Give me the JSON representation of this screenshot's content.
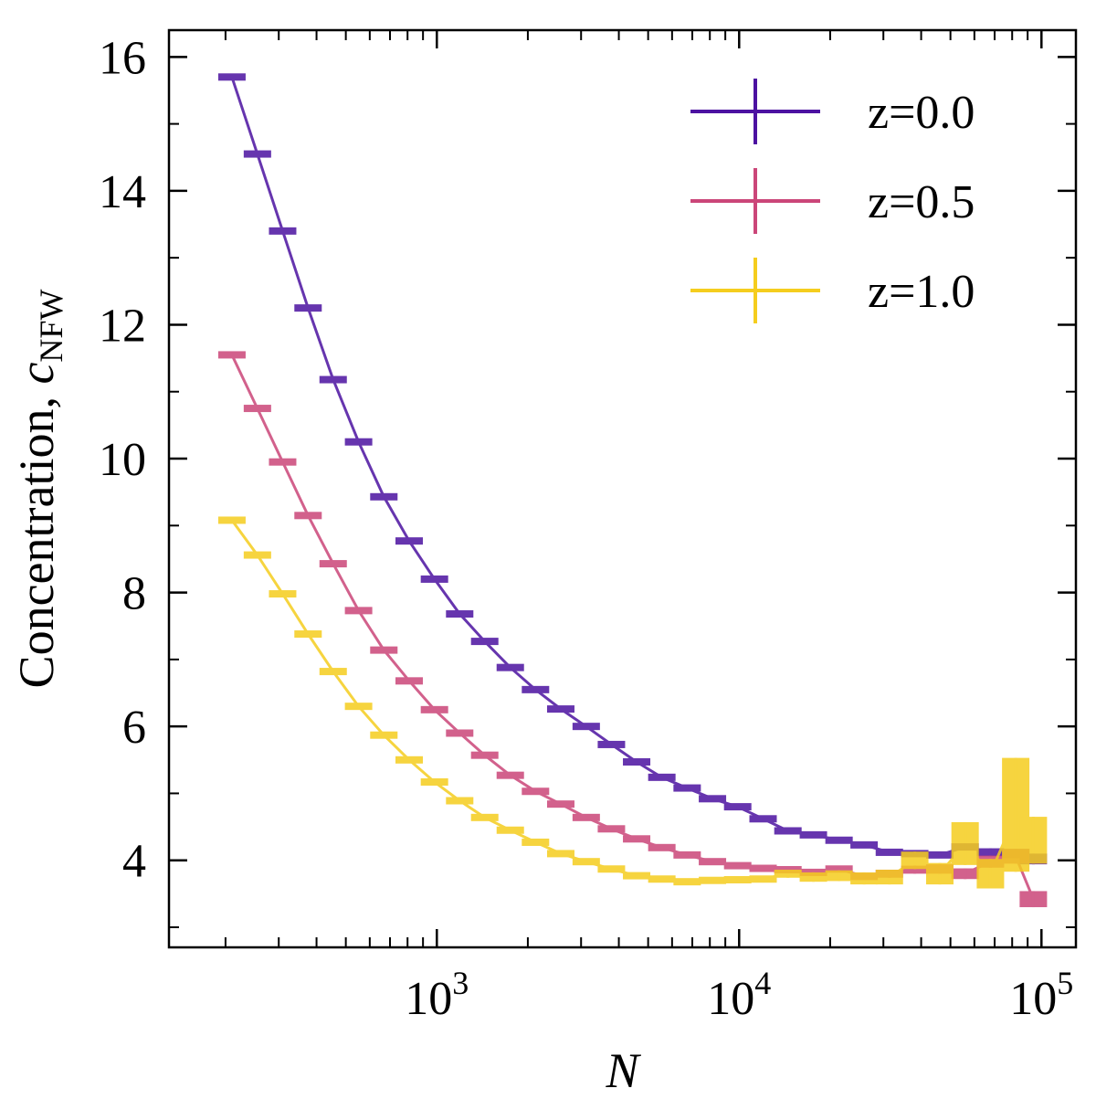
{
  "chart_data": {
    "type": "line",
    "xlabel": "N",
    "ylabel_main": "Concentration, ",
    "ylabel_sym": "c",
    "ylabel_sub": "NFW",
    "xscale": "log",
    "xlim": [
      130,
      130000
    ],
    "ylim": [
      2.7,
      16.4
    ],
    "x_major_ticks": [
      1000,
      10000,
      100000
    ],
    "x_tick_labels": [
      {
        "base": "10",
        "exp": "3"
      },
      {
        "base": "10",
        "exp": "4"
      },
      {
        "base": "10",
        "exp": "5"
      }
    ],
    "y_ticks": [
      4,
      6,
      8,
      10,
      12,
      14,
      16
    ],
    "y_tick_labels": [
      "4",
      "6",
      "8",
      "10",
      "12",
      "14",
      "16"
    ],
    "legend_position": "top-right",
    "grid": false,
    "series": [
      {
        "name": "z=0.0",
        "color": "#4c12a1",
        "x": [
          210,
          255,
          309,
          375,
          454,
          551,
          668,
          810,
          982,
          1190,
          1440,
          1750,
          2120,
          2570,
          3120,
          3780,
          4580,
          5550,
          6730,
          8160,
          9890,
          12000,
          14500,
          17600,
          21400,
          25900,
          31400,
          38100,
          46100,
          55900,
          67800,
          82200,
          94000
        ],
        "y": [
          15.7,
          14.55,
          13.4,
          12.25,
          11.18,
          10.25,
          9.43,
          8.77,
          8.2,
          7.68,
          7.27,
          6.88,
          6.55,
          6.26,
          6.0,
          5.73,
          5.47,
          5.24,
          5.08,
          4.92,
          4.8,
          4.62,
          4.44,
          4.38,
          4.3,
          4.23,
          4.12,
          4.1,
          4.08,
          4.2,
          4.12,
          4.1,
          4.02
        ],
        "err": [
          0.02,
          0.02,
          0.02,
          0.02,
          0.02,
          0.02,
          0.02,
          0.02,
          0.02,
          0.02,
          0.02,
          0.02,
          0.02,
          0.02,
          0.02,
          0.02,
          0.02,
          0.02,
          0.02,
          0.02,
          0.02,
          0.02,
          0.02,
          0.02,
          0.02,
          0.02,
          0.03,
          0.03,
          0.04,
          0.05,
          0.06,
          0.07,
          0.08
        ]
      },
      {
        "name": "z=0.5",
        "color": "#cb4679",
        "x": [
          210,
          255,
          309,
          375,
          454,
          551,
          668,
          810,
          982,
          1190,
          1440,
          1750,
          2120,
          2570,
          3120,
          3780,
          4580,
          5550,
          6730,
          8160,
          9890,
          12000,
          14500,
          17600,
          21400,
          25900,
          31400,
          38100,
          46100,
          55900,
          67800,
          82200,
          94000
        ],
        "y": [
          11.55,
          10.75,
          9.95,
          9.15,
          8.43,
          7.73,
          7.14,
          6.68,
          6.25,
          5.9,
          5.57,
          5.27,
          5.03,
          4.84,
          4.64,
          4.47,
          4.32,
          4.19,
          4.08,
          3.98,
          3.92,
          3.88,
          3.86,
          3.82,
          3.87,
          3.76,
          3.8,
          3.86,
          3.87,
          3.8,
          3.98,
          4.06,
          3.42
        ],
        "err": [
          0.02,
          0.02,
          0.02,
          0.02,
          0.02,
          0.02,
          0.02,
          0.02,
          0.02,
          0.02,
          0.02,
          0.02,
          0.02,
          0.02,
          0.02,
          0.02,
          0.02,
          0.02,
          0.02,
          0.02,
          0.02,
          0.02,
          0.03,
          0.03,
          0.04,
          0.05,
          0.06,
          0.06,
          0.07,
          0.08,
          0.09,
          0.11,
          0.12
        ]
      },
      {
        "name": "z=1.0",
        "color": "#f5cd1e",
        "x": [
          210,
          255,
          309,
          375,
          454,
          551,
          668,
          810,
          982,
          1190,
          1440,
          1750,
          2120,
          2570,
          3120,
          3780,
          4580,
          5550,
          6730,
          8160,
          9890,
          12000,
          14500,
          17600,
          21400,
          25900,
          31400,
          38100,
          46100,
          55900,
          67800,
          82200,
          94000
        ],
        "y": [
          9.08,
          8.56,
          7.98,
          7.38,
          6.82,
          6.3,
          5.87,
          5.5,
          5.17,
          4.89,
          4.64,
          4.45,
          4.27,
          4.1,
          3.98,
          3.87,
          3.77,
          3.72,
          3.68,
          3.7,
          3.71,
          3.72,
          3.8,
          3.75,
          3.77,
          3.73,
          3.75,
          4.0,
          3.8,
          4.25,
          3.8,
          4.68,
          4.3
        ],
        "err": [
          0.02,
          0.02,
          0.02,
          0.02,
          0.02,
          0.02,
          0.02,
          0.02,
          0.02,
          0.02,
          0.02,
          0.02,
          0.02,
          0.02,
          0.02,
          0.02,
          0.02,
          0.03,
          0.03,
          0.03,
          0.04,
          0.05,
          0.06,
          0.07,
          0.08,
          0.09,
          0.11,
          0.13,
          0.16,
          0.32,
          0.22,
          0.85,
          0.35
        ]
      }
    ]
  }
}
